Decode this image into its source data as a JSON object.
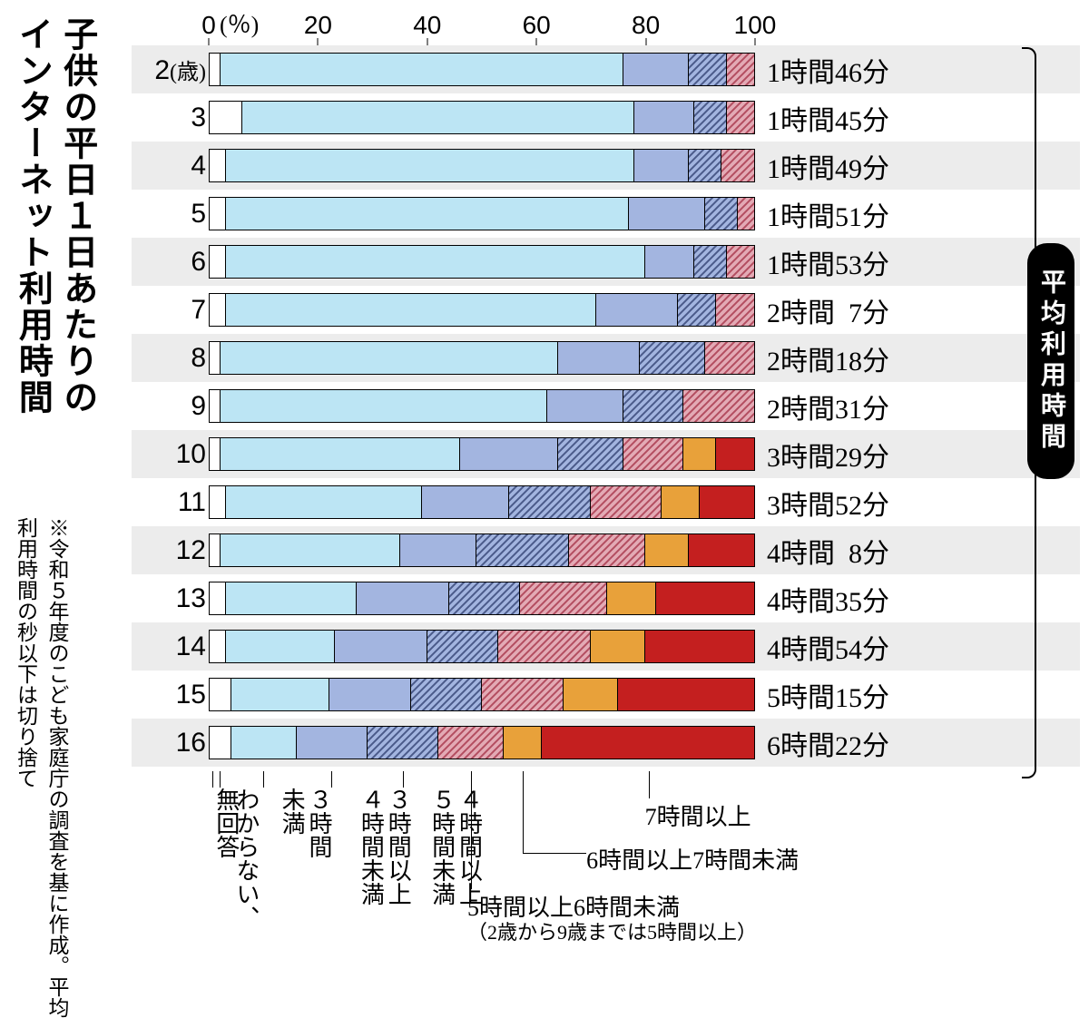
{
  "title_line1": "子供の平日１日あたりの",
  "title_line2": "インターネット利用時間",
  "note": "※令和５年度のこども家庭庁の調査を基に作成。平均利用時間の秒以下は切り捨て",
  "avg_label": "平均利用時間",
  "axis": {
    "unit": "(％)",
    "ticks": [
      0,
      20,
      40,
      60,
      80,
      100
    ]
  },
  "colors": {
    "white": "#ffffff",
    "lightblue": "#bce5f4",
    "medblue": "#a3b5e0",
    "hatch_blue_base": "#a3b5e0",
    "hatch_pink_base": "#d97b8e",
    "orange": "#e8a13a",
    "red": "#c41f1f",
    "band": "#ececec",
    "stroke": "#000000"
  },
  "categories": [
    {
      "key": "none",
      "label_vert": "無回答"
    },
    {
      "key": "unknown",
      "label_vert": "わからない、"
    },
    {
      "key": "lt3",
      "label_vert": "３時間\n未満"
    },
    {
      "key": "3to4",
      "label_vert": "３時間以上\n４時間未満"
    },
    {
      "key": "4to5",
      "label_vert": "４時間以上\n５時間未満"
    },
    {
      "key": "5to6",
      "label_horiz": "5時間以上6時間未満",
      "label_sub": "（2歳から9歳までは5時間以上）"
    },
    {
      "key": "6to7",
      "label_horiz": "6時間以上7時間未満"
    },
    {
      "key": "7plus",
      "label_horiz": "7時間以上"
    }
  ],
  "rows": [
    {
      "age": "2",
      "age_suffix": "(歳)",
      "avg": "1時間46分",
      "band": true,
      "seg": {
        "none": 0,
        "unknown": 2,
        "lt3": 74,
        "3to4": 12,
        "4to5": 7,
        "5to6": 5,
        "6to7": 0,
        "7plus": 0
      }
    },
    {
      "age": "3",
      "avg": "1時間45分",
      "seg": {
        "none": 0,
        "unknown": 6,
        "lt3": 72,
        "3to4": 11,
        "4to5": 6,
        "5to6": 5,
        "6to7": 0,
        "7plus": 0
      }
    },
    {
      "age": "4",
      "avg": "1時間49分",
      "band": true,
      "seg": {
        "none": 0,
        "unknown": 3,
        "lt3": 75,
        "3to4": 10,
        "4to5": 6,
        "5to6": 6,
        "6to7": 0,
        "7plus": 0
      }
    },
    {
      "age": "5",
      "avg": "1時間51分",
      "seg": {
        "none": 0,
        "unknown": 3,
        "lt3": 74,
        "3to4": 14,
        "4to5": 6,
        "5to6": 3,
        "6to7": 0,
        "7plus": 0
      }
    },
    {
      "age": "6",
      "avg": "1時間53分",
      "band": true,
      "seg": {
        "none": 0,
        "unknown": 3,
        "lt3": 77,
        "3to4": 9,
        "4to5": 6,
        "5to6": 5,
        "6to7": 0,
        "7plus": 0
      }
    },
    {
      "age": "7",
      "avg": "2時間  7分",
      "seg": {
        "none": 0,
        "unknown": 3,
        "lt3": 68,
        "3to4": 15,
        "4to5": 7,
        "5to6": 7,
        "6to7": 0,
        "7plus": 0
      }
    },
    {
      "age": "8",
      "avg": "2時間18分",
      "band": true,
      "seg": {
        "none": 0,
        "unknown": 2,
        "lt3": 62,
        "3to4": 15,
        "4to5": 12,
        "5to6": 9,
        "6to7": 0,
        "7plus": 0
      }
    },
    {
      "age": "9",
      "avg": "2時間31分",
      "seg": {
        "none": 0,
        "unknown": 2,
        "lt3": 60,
        "3to4": 14,
        "4to5": 11,
        "5to6": 13,
        "6to7": 0,
        "7plus": 0
      }
    },
    {
      "age": "10",
      "avg": "3時間29分",
      "band": true,
      "seg": {
        "none": 0,
        "unknown": 2,
        "lt3": 44,
        "3to4": 18,
        "4to5": 12,
        "5to6": 11,
        "6to7": 6,
        "7plus": 7
      }
    },
    {
      "age": "11",
      "avg": "3時間52分",
      "seg": {
        "none": 0,
        "unknown": 3,
        "lt3": 36,
        "3to4": 16,
        "4to5": 15,
        "5to6": 13,
        "6to7": 7,
        "7plus": 10
      }
    },
    {
      "age": "12",
      "avg": "4時間  8分",
      "band": true,
      "seg": {
        "none": 0,
        "unknown": 2,
        "lt3": 33,
        "3to4": 14,
        "4to5": 17,
        "5to6": 14,
        "6to7": 8,
        "7plus": 12
      }
    },
    {
      "age": "13",
      "avg": "4時間35分",
      "seg": {
        "none": 0,
        "unknown": 3,
        "lt3": 24,
        "3to4": 17,
        "4to5": 13,
        "5to6": 16,
        "6to7": 9,
        "7plus": 18
      }
    },
    {
      "age": "14",
      "avg": "4時間54分",
      "band": true,
      "seg": {
        "none": 0,
        "unknown": 3,
        "lt3": 20,
        "3to4": 17,
        "4to5": 13,
        "5to6": 17,
        "6to7": 10,
        "7plus": 20
      }
    },
    {
      "age": "15",
      "avg": "5時間15分",
      "seg": {
        "none": 0,
        "unknown": 4,
        "lt3": 18,
        "3to4": 15,
        "4to5": 13,
        "5to6": 15,
        "6to7": 10,
        "7plus": 25
      }
    },
    {
      "age": "16",
      "avg": "6時間22分",
      "band": true,
      "seg": {
        "none": 0,
        "unknown": 4,
        "lt3": 12,
        "3to4": 13,
        "4to5": 13,
        "5to6": 12,
        "6to7": 7,
        "7plus": 39
      }
    }
  ]
}
